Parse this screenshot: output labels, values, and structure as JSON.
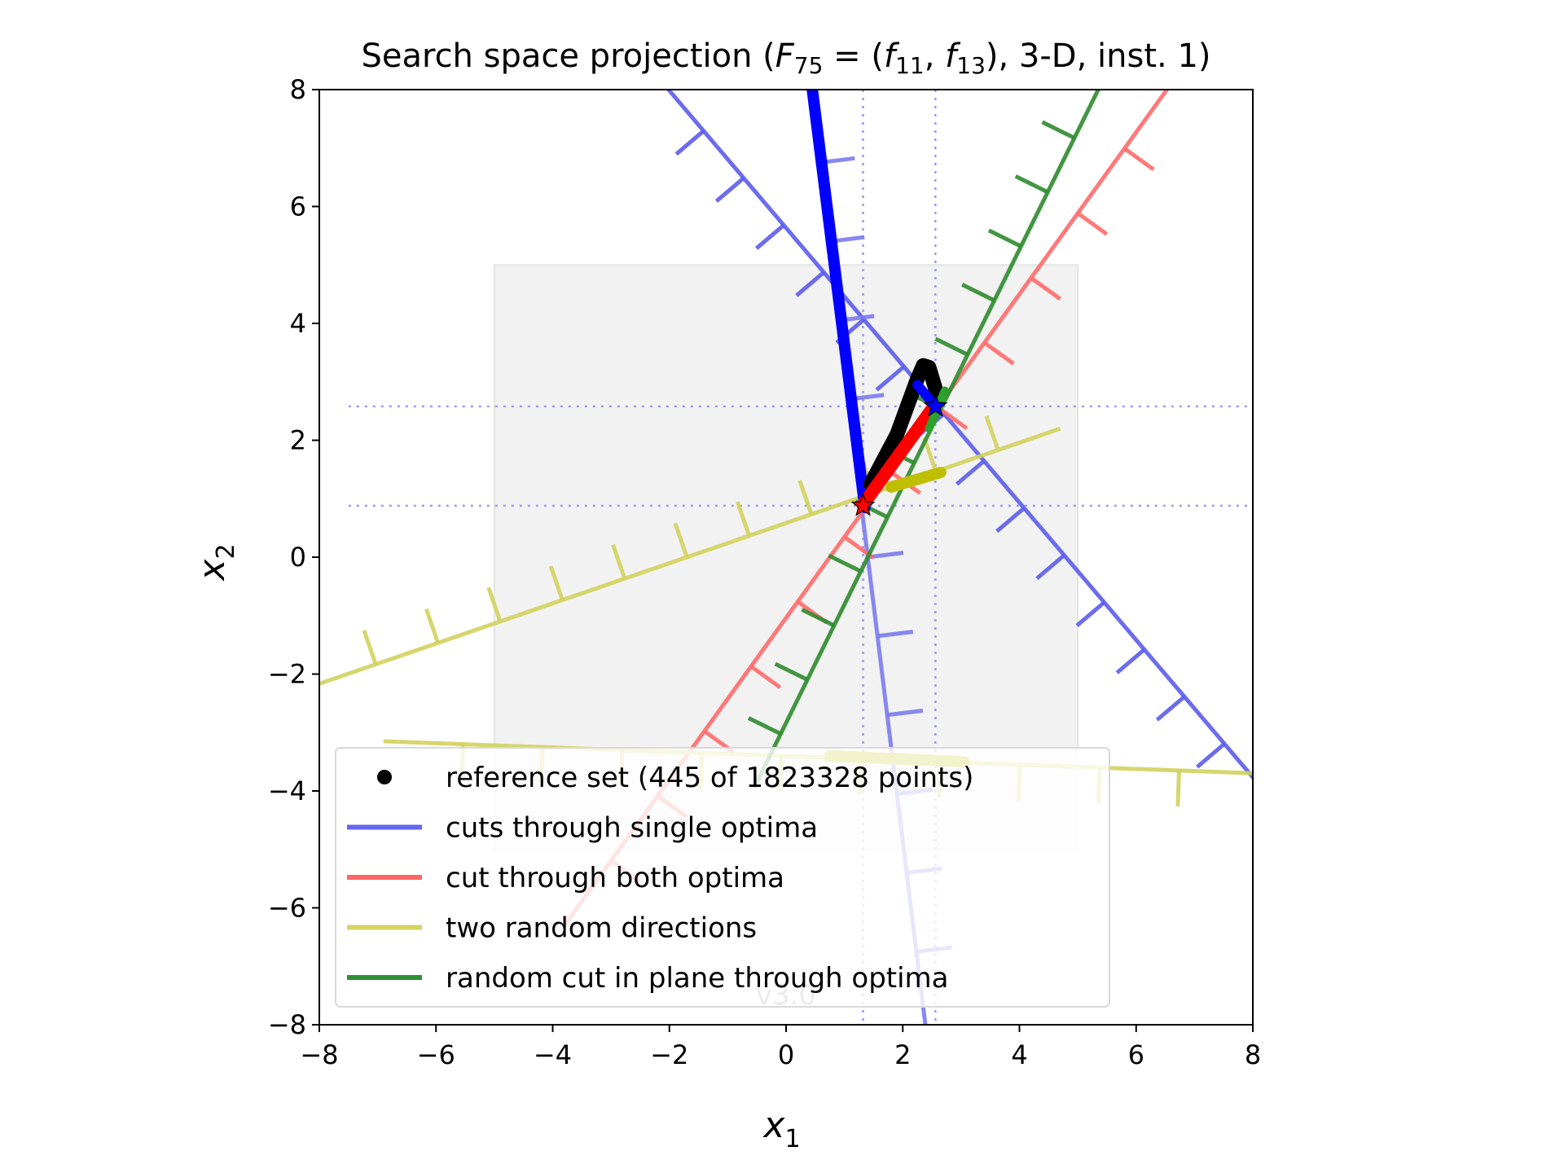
{
  "chart_data": {
    "type": "line",
    "title": {
      "prefix": "Search space projection (",
      "F": "F",
      "F_sub": "75",
      "eq": " = (",
      "f1": "f",
      "f1_sub": "11",
      "sep": ", ",
      "f2": "f",
      "f2_sub": "13",
      "suffix": "), 3-D, inst. 1)"
    },
    "xlabel": {
      "main": "x",
      "sub": "1"
    },
    "ylabel": {
      "main": "x",
      "sub": "2"
    },
    "xlim": [
      -8,
      8
    ],
    "ylim": [
      -8,
      8
    ],
    "xticks": [
      -8,
      -6,
      -4,
      -2,
      0,
      2,
      4,
      6,
      8
    ],
    "yticks": [
      -8,
      -6,
      -4,
      -2,
      0,
      2,
      4,
      6,
      8
    ],
    "tick_labels_x": [
      "−8",
      "−6",
      "−4",
      "−2",
      "0",
      "2",
      "4",
      "6",
      "8"
    ],
    "tick_labels_y": [
      "−8",
      "−6",
      "−4",
      "−2",
      "0",
      "2",
      "4",
      "6",
      "8"
    ],
    "region": {
      "x": [
        -5,
        5
      ],
      "y": [
        -5,
        5
      ],
      "color": "#f2f2f2"
    },
    "optima": [
      {
        "x": 1.32,
        "y": 0.88,
        "color": "#ff0000"
      },
      {
        "x": 2.56,
        "y": 2.58,
        "color": "#0000ff"
      }
    ],
    "version": "v3.0",
    "legend": [
      {
        "label": "reference set (445 of 1823328 points)",
        "kind": "dot",
        "color": "#000000"
      },
      {
        "label": "cuts through single optima",
        "kind": "line",
        "color": "#6565f0"
      },
      {
        "label": "cut through both optima",
        "kind": "line",
        "color": "#ff6666"
      },
      {
        "label": "two random directions",
        "kind": "line",
        "color": "#d4d465"
      },
      {
        "label": "random cut in plane through optima",
        "kind": "line",
        "color": "#2f8f2f"
      }
    ],
    "series": [
      {
        "color": "#5c5ced",
        "start": [
          -2.1,
          8.1
        ],
        "end": [
          8.2,
          -4.0
        ],
        "ticks": 14,
        "tickSide": 1
      },
      {
        "color": "#7b7bee",
        "start": [
          0.4,
          8.1
        ],
        "end": [
          2.4,
          -8.1
        ],
        "ticks": 11,
        "tickSide": -1
      },
      {
        "color": "#ff6a6a",
        "start": [
          -3.8,
          -6.3
        ],
        "end": [
          6.6,
          8.1
        ],
        "ticks": 12,
        "tickSide": 1
      },
      {
        "color": "#d2d25e",
        "start": [
          -8.1,
          -2.2
        ],
        "end": [
          4.7,
          2.2
        ],
        "ticks": 11,
        "tickSide": -1
      },
      {
        "color": "#d2d25e",
        "start": [
          -6.9,
          -3.15
        ],
        "end": [
          8.1,
          -3.7
        ],
        "ticks": 10,
        "tickSide": 1
      },
      {
        "color": "#2e8b2e",
        "start": [
          -0.55,
          -3.95
        ],
        "end": [
          5.4,
          8.1
        ],
        "ticks": 12,
        "tickSide": -1
      }
    ],
    "thick_segments": [
      {
        "color": "#0000ff",
        "points": [
          [
            0.45,
            8.0
          ],
          [
            1.35,
            0.85
          ]
        ],
        "width": 14
      },
      {
        "color": "#000000",
        "points": [
          [
            1.45,
            1.25
          ],
          [
            1.9,
            2.1
          ],
          [
            2.25,
            3.05
          ],
          [
            2.35,
            3.28
          ],
          [
            2.45,
            3.25
          ],
          [
            2.6,
            2.75
          ]
        ],
        "width": 18
      },
      {
        "color": "#ff0000",
        "points": [
          [
            1.32,
            0.9
          ],
          [
            2.55,
            2.6
          ]
        ],
        "width": 16
      },
      {
        "color": "#0000ff",
        "points": [
          [
            2.25,
            2.95
          ],
          [
            2.56,
            2.58
          ]
        ],
        "width": 12
      },
      {
        "color": "#2ca02c",
        "points": [
          [
            2.45,
            2.2
          ],
          [
            2.72,
            2.85
          ]
        ],
        "width": 10
      },
      {
        "color": "#bfbf00",
        "points": [
          [
            1.8,
            1.2
          ],
          [
            2.65,
            1.45
          ]
        ],
        "width": 14
      },
      {
        "color": "#bfbf00",
        "points": [
          [
            0.75,
            -3.4
          ],
          [
            3.05,
            -3.5
          ]
        ],
        "width": 14
      }
    ],
    "guide_lines": {
      "color": "#9a9af2",
      "vertical_x": [
        1.32,
        2.56
      ],
      "horizontal_y": [
        0.88,
        2.58
      ]
    },
    "grid": false,
    "legend_position": "lower-left"
  }
}
